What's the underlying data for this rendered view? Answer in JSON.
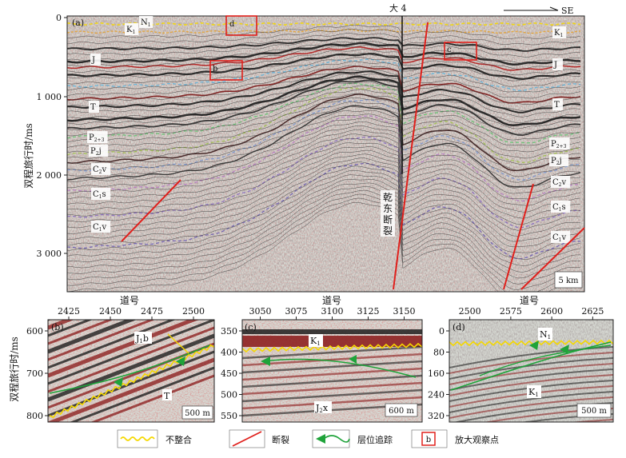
{
  "main": {
    "panel_label": "(a)",
    "well_label": "大 4",
    "direction_label": "SE",
    "y_axis_title": "双程旅行时/ms",
    "y_ticks": [
      "0",
      "1 000",
      "2 000",
      "3 000"
    ],
    "left_layers": [
      "K",
      "N",
      "J",
      "T",
      "P",
      "P",
      "C",
      "C",
      "C"
    ],
    "left_layer_subs": [
      "1",
      "1",
      "",
      "",
      "2+3",
      "2",
      "2",
      "1",
      "1"
    ],
    "left_layer_suffix": [
      "",
      "",
      "",
      "",
      "",
      "j",
      "v",
      "s",
      "v"
    ],
    "right_layers": [
      "K",
      "J",
      "T",
      "P",
      "P",
      "C",
      "C",
      "C"
    ],
    "right_layer_subs": [
      "1",
      "",
      "",
      "2+3",
      "2",
      "2",
      "1",
      "1"
    ],
    "right_layer_suffix": [
      "",
      "",
      "",
      "",
      "j",
      "v",
      "s",
      "v"
    ],
    "fault_label": "乾东断裂",
    "scale_bar": "5 km",
    "boxes": [
      "b",
      "c",
      "d"
    ]
  },
  "insets": {
    "x_axis_title": "道号",
    "y_axis_title": "双程旅行时/ms",
    "b": {
      "label": "(b)",
      "x_ticks": [
        "2425",
        "2450",
        "2475",
        "2500"
      ],
      "y_ticks": [
        "600",
        "700",
        "800"
      ],
      "layer_top": "J",
      "layer_top_sub": "1",
      "layer_top_suffix": "b",
      "layer_bottom": "T",
      "scale_bar": "500 m"
    },
    "c": {
      "label": "(c)",
      "x_ticks": [
        "3050",
        "3075",
        "3100",
        "3125",
        "3150"
      ],
      "y_ticks": [
        "350",
        "400",
        "450",
        "500",
        "550"
      ],
      "layer_top": "K",
      "layer_top_sub": "1",
      "layer_bottom": "J",
      "layer_bottom_sub": "2",
      "layer_bottom_suffix": "x",
      "scale_bar": "600 m"
    },
    "d": {
      "label": "(d)",
      "x_ticks": [
        "2500",
        "2575",
        "2600",
        "2625"
      ],
      "y_ticks": [
        "0",
        "80",
        "160",
        "240",
        "320"
      ],
      "layer_top": "N",
      "layer_top_sub": "1",
      "layer_bottom": "K",
      "layer_bottom_sub": "1",
      "scale_bar": "500 m"
    }
  },
  "legend": {
    "items": [
      "不整合",
      "断裂",
      "层位追踪",
      "放大观察点"
    ],
    "box_letter": "b"
  },
  "colors": {
    "unconformity": "#f5d800",
    "fault": "#e0201c",
    "horizon_track": "#1fa33a",
    "box": "#e0201c"
  }
}
